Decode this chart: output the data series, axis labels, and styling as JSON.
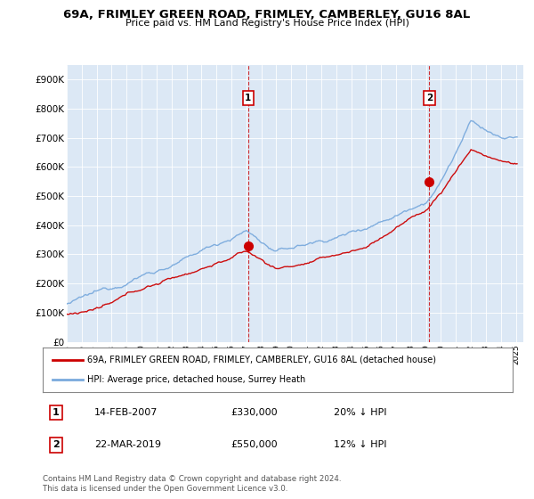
{
  "title": "69A, FRIMLEY GREEN ROAD, FRIMLEY, CAMBERLEY, GU16 8AL",
  "subtitle": "Price paid vs. HM Land Registry's House Price Index (HPI)",
  "ylabel_ticks": [
    "£0",
    "£100K",
    "£200K",
    "£300K",
    "£400K",
    "£500K",
    "£600K",
    "£700K",
    "£800K",
    "£900K"
  ],
  "ytick_vals": [
    0,
    100000,
    200000,
    300000,
    400000,
    500000,
    600000,
    700000,
    800000,
    900000
  ],
  "ylim": [
    0,
    950000
  ],
  "xlim_start": 1995.0,
  "xlim_end": 2025.5,
  "sale1_date": 2007.12,
  "sale1_price": 330000,
  "sale1_label": "1",
  "sale2_date": 2019.22,
  "sale2_price": 550000,
  "sale2_label": "2",
  "legend_line1": "69A, FRIMLEY GREEN ROAD, FRIMLEY, CAMBERLEY, GU16 8AL (detached house)",
  "legend_line2": "HPI: Average price, detached house, Surrey Heath",
  "annot1_date": "14-FEB-2007",
  "annot1_price": "£330,000",
  "annot1_hpi": "20% ↓ HPI",
  "annot2_date": "22-MAR-2019",
  "annot2_price": "£550,000",
  "annot2_hpi": "12% ↓ HPI",
  "footnote": "Contains HM Land Registry data © Crown copyright and database right 2024.\nThis data is licensed under the Open Government Licence v3.0.",
  "hpi_color": "#7aaadd",
  "sale_color": "#cc0000",
  "vline_color": "#cc0000",
  "plot_bg_color": "#dce8f5"
}
